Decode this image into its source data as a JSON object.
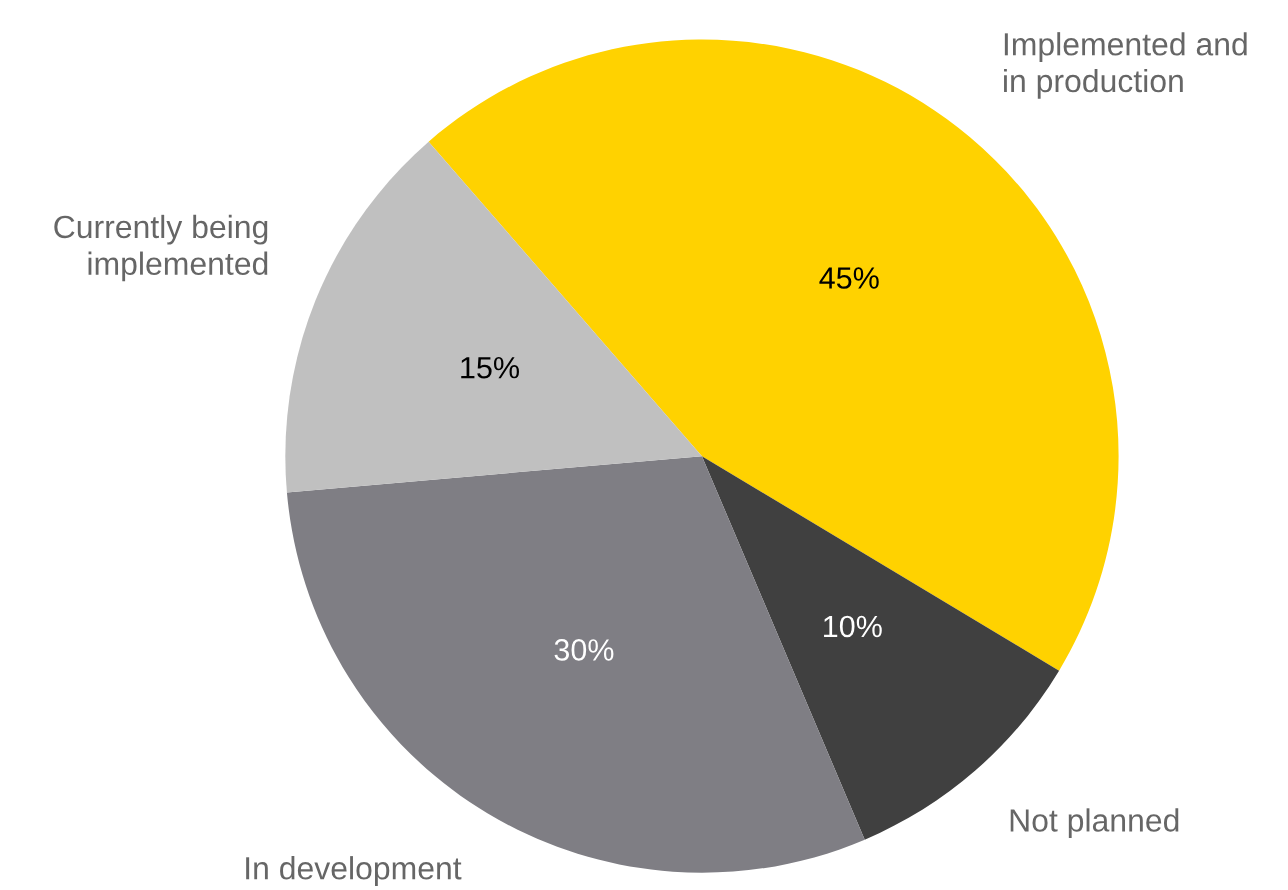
{
  "chart_data": {
    "type": "pie",
    "categories": [
      "Implemented and\nin production",
      "Not planned",
      "In development",
      "Currently being\nimplemented"
    ],
    "values": [
      45,
      10,
      30,
      15
    ],
    "colors": [
      "#ffd200",
      "#404040",
      "#7f7e84",
      "#c0c0c0"
    ],
    "value_labels": [
      "45%",
      "10%",
      "30%",
      "15%"
    ]
  }
}
